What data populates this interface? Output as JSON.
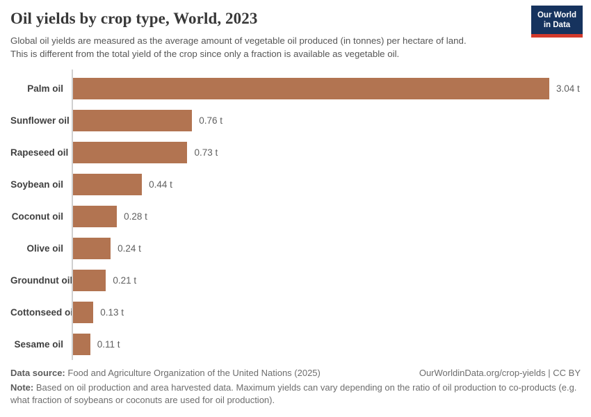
{
  "header": {
    "title": "Oil yields by crop type, World, 2023",
    "subtitle_lines": [
      "Global oil yields are measured as the average amount of vegetable oil produced (in tonnes) per hectare of land.",
      "This is different from the total yield of the crop since only a fraction is available as vegetable oil."
    ],
    "logo": {
      "line1": "Our World",
      "line2": "in Data"
    }
  },
  "chart_data": {
    "type": "bar",
    "orientation": "horizontal",
    "title": "Oil yields by crop type, World, 2023",
    "unit": "tonnes per hectare",
    "categories": [
      "Palm oil",
      "Sunflower oil",
      "Rapeseed oil",
      "Soybean oil",
      "Coconut oil",
      "Olive oil",
      "Groundnut oil",
      "Cottonseed oil",
      "Sesame oil"
    ],
    "values": [
      3.04,
      0.76,
      0.73,
      0.44,
      0.28,
      0.24,
      0.21,
      0.13,
      0.11
    ],
    "value_labels": [
      "3.04 t",
      "0.76 t",
      "0.73 t",
      "0.44 t",
      "0.28 t",
      "0.24 t",
      "0.21 t",
      "0.13 t",
      "0.11 t"
    ],
    "xlim": [
      0,
      3.04
    ],
    "grid": false,
    "legend": false,
    "bar_color": "#b27451"
  },
  "footer": {
    "datasource_label": "Data source:",
    "datasource_text": "Food and Agriculture Organization of the United Nations (2025)",
    "attribution": "OurWorldinData.org/crop-yields | CC BY",
    "note_label": "Note:",
    "note_text": "Based on oil production and area harvested data. Maximum yields can vary depending on the ratio of oil production to co-products (e.g. what fraction of soybeans or coconuts are used for oil production)."
  },
  "colors": {
    "bar": "#b27451",
    "logo_navy": "#16335e",
    "logo_red": "#d33a2c",
    "axis": "#d0d0d0"
  }
}
